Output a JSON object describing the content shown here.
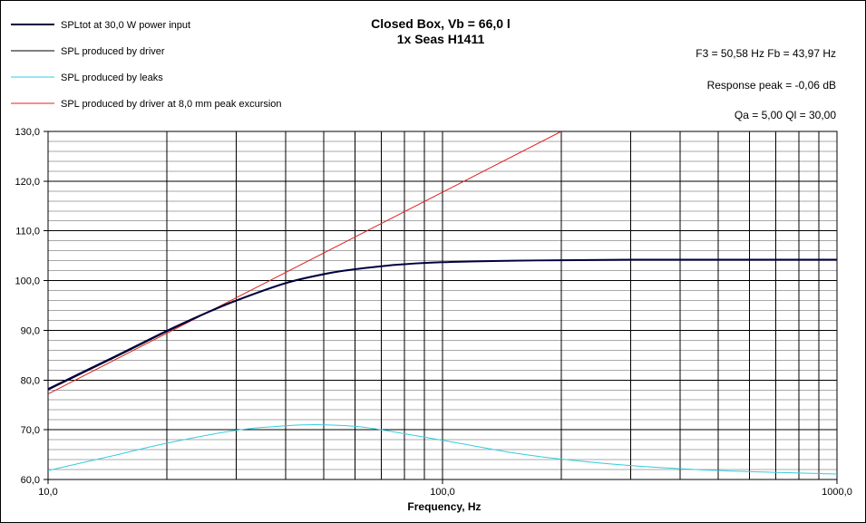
{
  "chart_data": {
    "type": "line",
    "title": [
      "Closed Box, Vb = 66,0 l",
      "1x Seas H1411"
    ],
    "xlabel": "Frequency, Hz",
    "ylabel": "",
    "x_scale": "log",
    "xlim": [
      10,
      1000
    ],
    "ylim": [
      60,
      130
    ],
    "x_tick_labels": [
      {
        "value": 10,
        "label": "10,0"
      },
      {
        "value": 100,
        "label": "100,0"
      },
      {
        "value": 1000,
        "label": "1000,0"
      }
    ],
    "y_tick_labels": [
      {
        "value": 60,
        "label": "60,0"
      },
      {
        "value": 70,
        "label": "70,0"
      },
      {
        "value": 80,
        "label": "80,0"
      },
      {
        "value": 90,
        "label": "90,0"
      },
      {
        "value": 100,
        "label": "100,0"
      },
      {
        "value": 110,
        "label": "110,0"
      },
      {
        "value": 120,
        "label": "120,0"
      },
      {
        "value": 130,
        "label": "130,0"
      }
    ],
    "grid": true,
    "legend_position": "top-left",
    "annotations": [
      "F3 = 50,58  Hz   Fb = 43,97  Hz",
      "Response  peak = -0,06  dB",
      "Qa = 5,00   Ql = 30,00"
    ],
    "series": [
      {
        "name": "SPLtot at 30,0 W power input",
        "color": "#000040",
        "width": 2,
        "x": [
          10,
          15,
          20,
          25,
          30,
          40,
          50,
          60,
          70,
          80,
          100,
          150,
          200,
          300,
          500,
          1000
        ],
        "y": [
          78.2,
          85.0,
          89.9,
          93.4,
          96.0,
          99.5,
          101.3,
          102.3,
          102.9,
          103.3,
          103.7,
          104.0,
          104.1,
          104.2,
          104.2,
          104.2
        ]
      },
      {
        "name": "SPL produced by driver",
        "color": "#000000",
        "width": 1,
        "x": [
          10,
          15,
          20,
          25,
          30,
          40,
          50,
          60,
          70,
          80,
          100,
          150,
          200,
          300,
          500,
          1000
        ],
        "y": [
          78.0,
          84.8,
          89.7,
          93.3,
          95.9,
          99.4,
          101.2,
          102.3,
          102.9,
          103.3,
          103.7,
          104.0,
          104.1,
          104.2,
          104.2,
          104.2
        ]
      },
      {
        "name": "SPL produced by leaks",
        "color": "#33ccdd",
        "width": 1,
        "x": [
          10,
          15,
          20,
          30,
          40,
          45,
          50,
          60,
          70,
          80,
          100,
          150,
          200,
          300,
          500,
          1000
        ],
        "y": [
          61.8,
          65.0,
          67.3,
          69.9,
          70.8,
          71.0,
          71.0,
          70.7,
          70.0,
          69.2,
          67.9,
          65.4,
          64.1,
          62.8,
          61.8,
          61.1
        ]
      },
      {
        "name": "SPL produced by driver at 8,0 mm peak excursion",
        "color": "#e02020",
        "width": 1,
        "x": [
          10,
          200
        ],
        "y": [
          77.2,
          130.0
        ]
      }
    ]
  }
}
